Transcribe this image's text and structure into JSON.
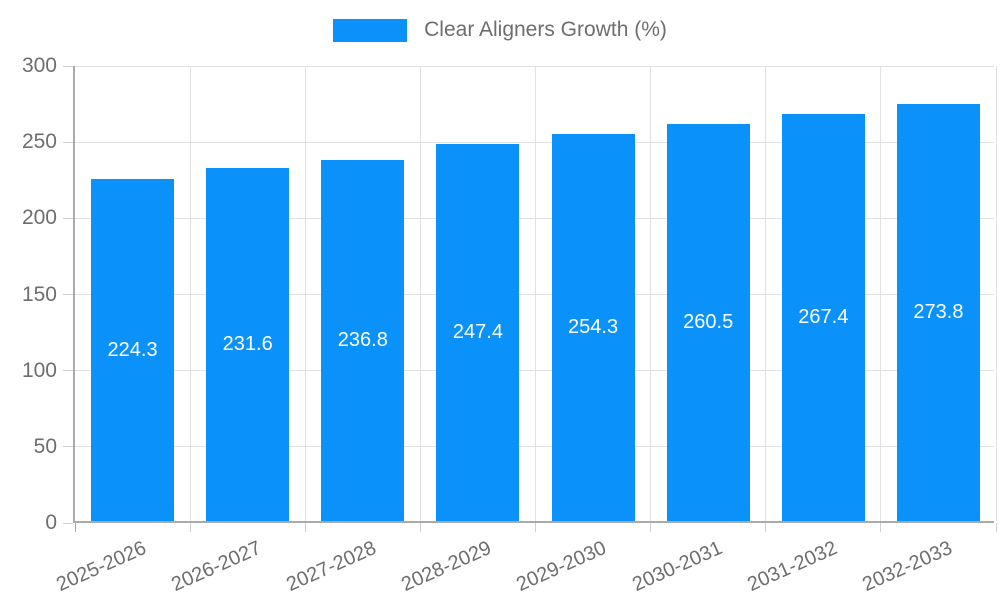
{
  "chart_data": {
    "type": "bar",
    "legend": "Clear Aligners Growth (%)",
    "legend_position": "top",
    "categories": [
      "2025-2026",
      "2026-2027",
      "2027-2028",
      "2028-2029",
      "2029-2030",
      "2030-2031",
      "2031-2032",
      "2032-2033"
    ],
    "series": [
      {
        "name": "Clear Aligners Growth (%)",
        "values": [
          224.3,
          231.6,
          236.8,
          247.4,
          254.3,
          260.5,
          267.4,
          273.8
        ]
      }
    ],
    "value_labels": [
      "224.3",
      "231.6",
      "236.8",
      "247.4",
      "254.3",
      "260.5",
      "267.4",
      "273.8"
    ],
    "xlabel": "",
    "ylabel": "",
    "ylim": [
      0,
      300
    ],
    "yticks": [
      0,
      50,
      100,
      150,
      200,
      250,
      300
    ],
    "grid": true,
    "colors": {
      "bar": "#0a91fa",
      "grid": "#e2e2e2",
      "axis": "#aaaaaa",
      "tick": "#cfcfcf",
      "axis_text": "#6e6e6e",
      "value_label": "#ffffff"
    }
  }
}
